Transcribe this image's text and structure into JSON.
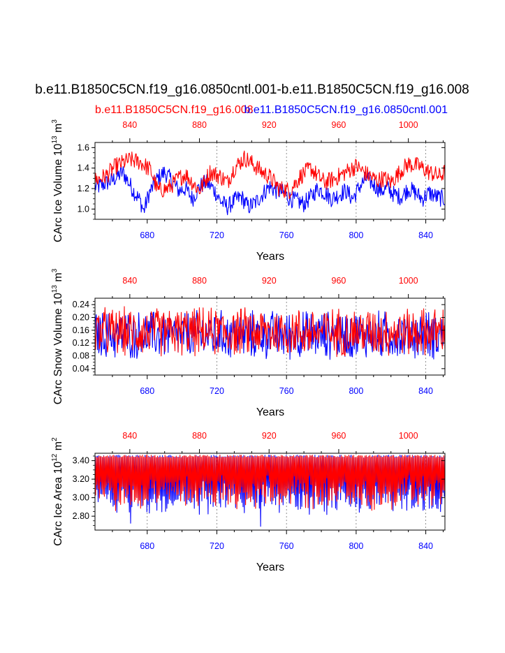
{
  "figure": {
    "main_title": "b.e11.B1850C5CN.f19_g16.0850cntl.001-b.e11.B1850C5CN.f19_g16.008",
    "legend_red": "b.e11.B1850C5CN.f19_g16.008",
    "legend_blue": "b.e11.B1850C5CN.f19_g16.0850cntl.001",
    "colors": {
      "red": "#ff0000",
      "blue": "#0000ff",
      "axis": "#000000",
      "grid": "#777777"
    }
  },
  "chart_data": [
    {
      "type": "line",
      "ylabel": "CArc Ice Volume 10",
      "ylabel_exp": "13",
      "ylabel_unit": " m",
      "ylabel_unit_exp": "3",
      "xlabel": "Years",
      "xlim_bottom": [
        650,
        851
      ],
      "xlim_top": [
        820,
        1021
      ],
      "ylim": [
        0.9,
        1.65
      ],
      "yticks": [
        1.0,
        1.2,
        1.4,
        1.6
      ],
      "ytick_labels": [
        "1.0",
        "1.2",
        "1.4",
        "1.6"
      ],
      "bottom_ticks": [
        680,
        720,
        760,
        800,
        840
      ],
      "top_ticks": [
        840,
        880,
        920,
        960,
        1000
      ],
      "grid_x": [
        720,
        760,
        800,
        840
      ],
      "series": [
        {
          "name": "b.e11.B1850C5CN.f19_g16.0850cntl.001",
          "axis": "bottom",
          "color": "#0000ff",
          "x_years": [
            652,
            660,
            666,
            672,
            676,
            678,
            681,
            686,
            690,
            694,
            698,
            702,
            706,
            710,
            714,
            718,
            722,
            726,
            730,
            734,
            738,
            742,
            746,
            750,
            754,
            758,
            762,
            766,
            770,
            774,
            778,
            782,
            786,
            790,
            794,
            798,
            802,
            806,
            810,
            814,
            818,
            822,
            826,
            830,
            834,
            838,
            842,
            846,
            850
          ],
          "values": [
            1.22,
            1.28,
            1.36,
            1.18,
            1.08,
            0.98,
            1.15,
            1.3,
            1.36,
            1.28,
            1.18,
            1.2,
            1.1,
            1.22,
            1.26,
            1.2,
            1.08,
            1.02,
            1.08,
            1.12,
            1.02,
            1.06,
            1.14,
            1.22,
            1.18,
            1.16,
            1.1,
            1.08,
            1.05,
            1.12,
            1.2,
            1.16,
            1.1,
            1.14,
            1.18,
            1.1,
            1.22,
            1.3,
            1.24,
            1.18,
            1.2,
            1.14,
            1.12,
            1.2,
            1.16,
            1.1,
            1.16,
            1.12,
            1.1
          ]
        },
        {
          "name": "b.e11.B1850C5CN.f19_g16.008",
          "axis": "top",
          "color": "#ff0000",
          "x_years": [
            820,
            826,
            832,
            836,
            840,
            846,
            852,
            856,
            862,
            868,
            872,
            876,
            880,
            886,
            892,
            896,
            900,
            906,
            912,
            916,
            920,
            926,
            932,
            938,
            944,
            948,
            952,
            958,
            964,
            970,
            976,
            982,
            986,
            990,
            996,
            1000,
            1006,
            1012,
            1018,
            1021
          ],
          "values": [
            1.28,
            1.32,
            1.42,
            1.45,
            1.48,
            1.46,
            1.38,
            1.18,
            1.2,
            1.3,
            1.34,
            1.26,
            1.18,
            1.36,
            1.32,
            1.26,
            1.4,
            1.5,
            1.42,
            1.36,
            1.32,
            1.2,
            1.18,
            1.32,
            1.4,
            1.32,
            1.26,
            1.3,
            1.36,
            1.42,
            1.34,
            1.28,
            1.3,
            1.26,
            1.38,
            1.44,
            1.42,
            1.36,
            1.32,
            1.36
          ]
        }
      ]
    },
    {
      "type": "line",
      "ylabel": "CArc Snow Volume 10",
      "ylabel_exp": "13",
      "ylabel_unit": " m",
      "ylabel_unit_exp": "3",
      "xlabel": "Years",
      "xlim_bottom": [
        650,
        851
      ],
      "xlim_top": [
        820,
        1021
      ],
      "ylim": [
        0.02,
        0.26
      ],
      "yticks": [
        0.04,
        0.08,
        0.12,
        0.16,
        0.2,
        0.24
      ],
      "ytick_labels": [
        "0.04",
        "0.08",
        "0.12",
        "0.16",
        "0.20",
        "0.24"
      ],
      "bottom_ticks": [
        680,
        720,
        760,
        800,
        840
      ],
      "top_ticks": [
        840,
        880,
        920,
        960,
        1000
      ],
      "grid_x": [
        720,
        760,
        800,
        840
      ],
      "series": [
        {
          "name": "b.e11.B1850C5CN.f19_g16.0850cntl.001",
          "axis": "bottom",
          "color": "#0000ff",
          "x_years": [
            650,
            851
          ],
          "mean": 0.145,
          "amplitude": 0.085
        },
        {
          "name": "b.e11.B1850C5CN.f19_g16.008",
          "axis": "top",
          "color": "#ff0000",
          "x_years": [
            820,
            1021
          ],
          "mean": 0.155,
          "amplitude": 0.085
        }
      ]
    },
    {
      "type": "line",
      "ylabel": "CArc Ice Area 10",
      "ylabel_exp": "12",
      "ylabel_unit": " m",
      "ylabel_unit_exp": "2",
      "xlabel": "Years",
      "xlim_bottom": [
        650,
        851
      ],
      "xlim_top": [
        820,
        1021
      ],
      "ylim": [
        2.65,
        3.48
      ],
      "yticks": [
        2.8,
        3.0,
        3.2,
        3.4
      ],
      "ytick_labels": [
        "2.80",
        "3.00",
        "3.20",
        "3.40"
      ],
      "bottom_ticks": [
        680,
        720,
        760,
        800,
        840
      ],
      "top_ticks": [
        840,
        880,
        920,
        960,
        1000
      ],
      "grid_x": [
        680,
        720,
        760,
        800,
        840
      ],
      "series": [
        {
          "name": "b.e11.B1850C5CN.f19_g16.0850cntl.001",
          "axis": "bottom",
          "color": "#0000ff",
          "x_years": [
            650,
            851
          ],
          "max": 3.46,
          "min_typical": 2.95,
          "min_extreme": 2.68
        },
        {
          "name": "b.e11.B1850C5CN.f19_g16.008",
          "axis": "top",
          "color": "#ff0000",
          "x_years": [
            820,
            1021
          ],
          "max": 3.46,
          "min_typical": 3.0,
          "min_extreme": 2.85
        }
      ]
    }
  ]
}
